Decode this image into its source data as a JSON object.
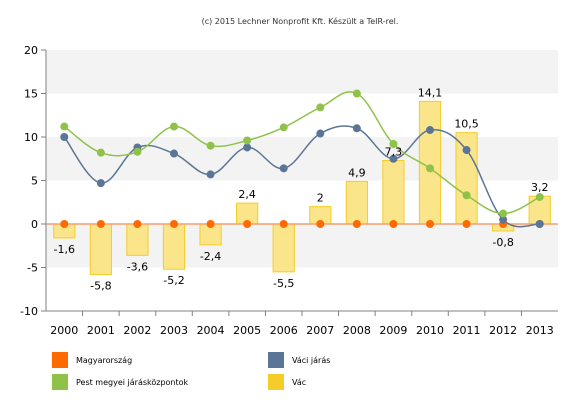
{
  "credit": "(c) 2015 Lechner Nonprofit Kft. Készült a TeIR-rel.",
  "colors": {
    "magyarorszag": "#ff6a00",
    "vaci_jaras": "#5a7595",
    "pest": "#8fc249",
    "vac_fill": "#fbe58a",
    "vac_stroke": "#f5cc28",
    "zero_line": "#f4a070",
    "band": "#f3f3f3",
    "axis": "#808080"
  },
  "chart_data": {
    "type": "bar",
    "x": [
      "2000",
      "2001",
      "2002",
      "2003",
      "2004",
      "2005",
      "2006",
      "2007",
      "2008",
      "2009",
      "2010",
      "2011",
      "2012",
      "2013"
    ],
    "ylim": [
      -10,
      20
    ],
    "yticks": [
      "20",
      "15",
      "10",
      "5",
      "0",
      "-5",
      "-10"
    ],
    "ytick_values": [
      20,
      15,
      10,
      5,
      0,
      -5,
      -10
    ],
    "grid": "horizontal bands",
    "legend_position": "bottom",
    "series": [
      {
        "name": "Vác",
        "type": "bar",
        "values": [
          -1.6,
          -5.8,
          -3.6,
          -5.2,
          -2.4,
          2.4,
          -5.5,
          2,
          4.9,
          7.3,
          14.1,
          10.5,
          -0.8,
          3.2
        ],
        "labels": [
          "-1,6",
          "-5,8",
          "-3,6",
          "-5,2",
          "-2,4",
          "2,4",
          "-5,5",
          "2",
          "4,9",
          "7,3",
          "14,1",
          "10,5",
          "-0,8",
          "3,2"
        ]
      },
      {
        "name": "Magyarország",
        "type": "line",
        "values": [
          0,
          0,
          0,
          0,
          0,
          0,
          0,
          0,
          0,
          0,
          0,
          0,
          0,
          0
        ]
      },
      {
        "name": "Váci járás",
        "type": "line",
        "values": [
          10,
          4.7,
          8.8,
          8.1,
          5.7,
          8.8,
          6.4,
          10.4,
          11,
          7.5,
          10.8,
          8.5,
          0.5,
          0
        ]
      },
      {
        "name": "Pest megyei járásközpontok",
        "type": "line",
        "values": [
          11.2,
          8.2,
          8.3,
          11.2,
          9,
          9.6,
          11.1,
          13.4,
          15,
          9.2,
          6.4,
          3.3,
          1.2,
          3.1
        ]
      }
    ]
  },
  "legend": [
    {
      "label": "Magyarország",
      "color_key": "magyarorszag"
    },
    {
      "label": "Váci járás",
      "color_key": "vaci_jaras"
    },
    {
      "label": "Pest megyei járásközpontok",
      "color_key": "pest"
    },
    {
      "label": "Vác",
      "color_key": "vac_stroke"
    }
  ]
}
